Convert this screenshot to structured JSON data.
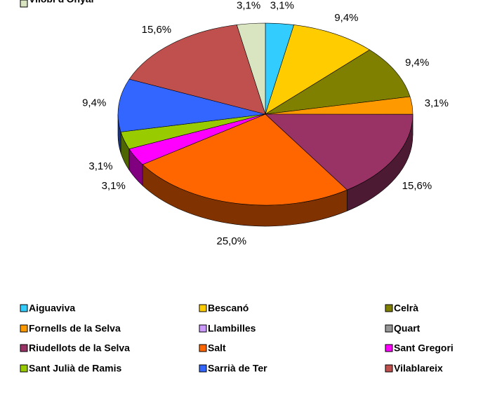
{
  "chart_data": {
    "type": "pie3d",
    "categories": [
      "Aiguaviva",
      "Bescanó",
      "Celrà",
      "Fornells de la Selva",
      "Llambilles",
      "Quart",
      "Riudellots de la Selva",
      "Salt",
      "Sant Gregori",
      "Sant Julià de Ramis",
      "Sarrià de Ter",
      "Vilablareix",
      "Vilobí d'Onyar"
    ],
    "values": [
      3.1,
      9.4,
      9.4,
      3.1,
      0,
      0,
      15.6,
      25.0,
      3.1,
      3.1,
      9.4,
      15.6,
      3.1
    ],
    "value_labels": [
      "3,1%",
      "9,4%",
      "9,4%",
      "3,1%",
      null,
      null,
      "15,6%",
      "25,0%",
      "3,1%",
      "3,1%",
      "9,4%",
      "15,6%",
      "3,1%"
    ],
    "colors": [
      "#33ccff",
      "#ffcc00",
      "#808000",
      "#ff9900",
      "#cc99ff",
      "#969696",
      "#993366",
      "#ff6600",
      "#ff00ff",
      "#99cc00",
      "#3366ff",
      "#c0504d",
      "#d9e4c0"
    ],
    "legend": "bottom"
  }
}
